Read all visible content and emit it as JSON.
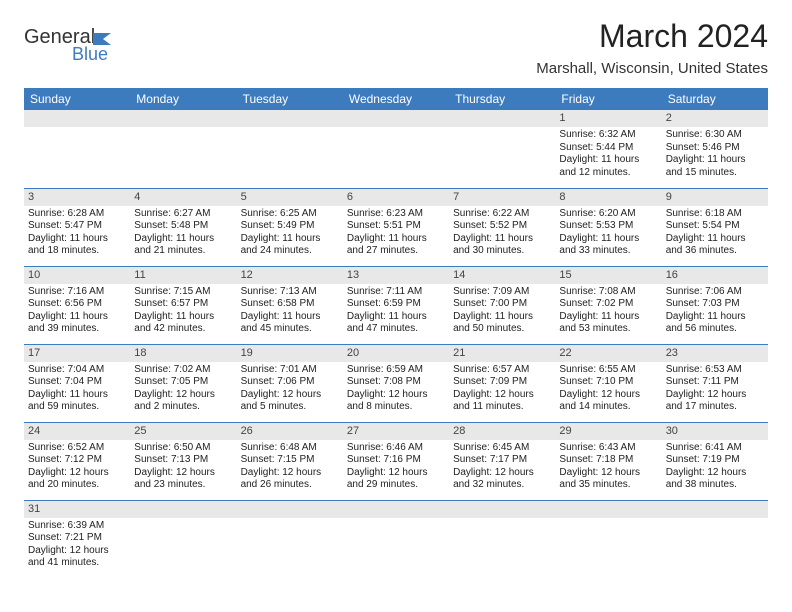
{
  "brand": {
    "part1": "General",
    "part2": "Blue"
  },
  "title": "March 2024",
  "location": "Marshall, Wisconsin, United States",
  "colors": {
    "header_bg": "#3d7bbf",
    "header_text": "#ffffff",
    "daynum_bg": "#e8e8e8",
    "border": "#3d7bbf",
    "page_bg": "#ffffff",
    "text": "#222222"
  },
  "weekdays": [
    "Sunday",
    "Monday",
    "Tuesday",
    "Wednesday",
    "Thursday",
    "Friday",
    "Saturday"
  ],
  "weeks": [
    [
      null,
      null,
      null,
      null,
      null,
      {
        "n": "1",
        "sunrise": "Sunrise: 6:32 AM",
        "sunset": "Sunset: 5:44 PM",
        "daylight": "Daylight: 11 hours and 12 minutes."
      },
      {
        "n": "2",
        "sunrise": "Sunrise: 6:30 AM",
        "sunset": "Sunset: 5:46 PM",
        "daylight": "Daylight: 11 hours and 15 minutes."
      }
    ],
    [
      {
        "n": "3",
        "sunrise": "Sunrise: 6:28 AM",
        "sunset": "Sunset: 5:47 PM",
        "daylight": "Daylight: 11 hours and 18 minutes."
      },
      {
        "n": "4",
        "sunrise": "Sunrise: 6:27 AM",
        "sunset": "Sunset: 5:48 PM",
        "daylight": "Daylight: 11 hours and 21 minutes."
      },
      {
        "n": "5",
        "sunrise": "Sunrise: 6:25 AM",
        "sunset": "Sunset: 5:49 PM",
        "daylight": "Daylight: 11 hours and 24 minutes."
      },
      {
        "n": "6",
        "sunrise": "Sunrise: 6:23 AM",
        "sunset": "Sunset: 5:51 PM",
        "daylight": "Daylight: 11 hours and 27 minutes."
      },
      {
        "n": "7",
        "sunrise": "Sunrise: 6:22 AM",
        "sunset": "Sunset: 5:52 PM",
        "daylight": "Daylight: 11 hours and 30 minutes."
      },
      {
        "n": "8",
        "sunrise": "Sunrise: 6:20 AM",
        "sunset": "Sunset: 5:53 PM",
        "daylight": "Daylight: 11 hours and 33 minutes."
      },
      {
        "n": "9",
        "sunrise": "Sunrise: 6:18 AM",
        "sunset": "Sunset: 5:54 PM",
        "daylight": "Daylight: 11 hours and 36 minutes."
      }
    ],
    [
      {
        "n": "10",
        "sunrise": "Sunrise: 7:16 AM",
        "sunset": "Sunset: 6:56 PM",
        "daylight": "Daylight: 11 hours and 39 minutes."
      },
      {
        "n": "11",
        "sunrise": "Sunrise: 7:15 AM",
        "sunset": "Sunset: 6:57 PM",
        "daylight": "Daylight: 11 hours and 42 minutes."
      },
      {
        "n": "12",
        "sunrise": "Sunrise: 7:13 AM",
        "sunset": "Sunset: 6:58 PM",
        "daylight": "Daylight: 11 hours and 45 minutes."
      },
      {
        "n": "13",
        "sunrise": "Sunrise: 7:11 AM",
        "sunset": "Sunset: 6:59 PM",
        "daylight": "Daylight: 11 hours and 47 minutes."
      },
      {
        "n": "14",
        "sunrise": "Sunrise: 7:09 AM",
        "sunset": "Sunset: 7:00 PM",
        "daylight": "Daylight: 11 hours and 50 minutes."
      },
      {
        "n": "15",
        "sunrise": "Sunrise: 7:08 AM",
        "sunset": "Sunset: 7:02 PM",
        "daylight": "Daylight: 11 hours and 53 minutes."
      },
      {
        "n": "16",
        "sunrise": "Sunrise: 7:06 AM",
        "sunset": "Sunset: 7:03 PM",
        "daylight": "Daylight: 11 hours and 56 minutes."
      }
    ],
    [
      {
        "n": "17",
        "sunrise": "Sunrise: 7:04 AM",
        "sunset": "Sunset: 7:04 PM",
        "daylight": "Daylight: 11 hours and 59 minutes."
      },
      {
        "n": "18",
        "sunrise": "Sunrise: 7:02 AM",
        "sunset": "Sunset: 7:05 PM",
        "daylight": "Daylight: 12 hours and 2 minutes."
      },
      {
        "n": "19",
        "sunrise": "Sunrise: 7:01 AM",
        "sunset": "Sunset: 7:06 PM",
        "daylight": "Daylight: 12 hours and 5 minutes."
      },
      {
        "n": "20",
        "sunrise": "Sunrise: 6:59 AM",
        "sunset": "Sunset: 7:08 PM",
        "daylight": "Daylight: 12 hours and 8 minutes."
      },
      {
        "n": "21",
        "sunrise": "Sunrise: 6:57 AM",
        "sunset": "Sunset: 7:09 PM",
        "daylight": "Daylight: 12 hours and 11 minutes."
      },
      {
        "n": "22",
        "sunrise": "Sunrise: 6:55 AM",
        "sunset": "Sunset: 7:10 PM",
        "daylight": "Daylight: 12 hours and 14 minutes."
      },
      {
        "n": "23",
        "sunrise": "Sunrise: 6:53 AM",
        "sunset": "Sunset: 7:11 PM",
        "daylight": "Daylight: 12 hours and 17 minutes."
      }
    ],
    [
      {
        "n": "24",
        "sunrise": "Sunrise: 6:52 AM",
        "sunset": "Sunset: 7:12 PM",
        "daylight": "Daylight: 12 hours and 20 minutes."
      },
      {
        "n": "25",
        "sunrise": "Sunrise: 6:50 AM",
        "sunset": "Sunset: 7:13 PM",
        "daylight": "Daylight: 12 hours and 23 minutes."
      },
      {
        "n": "26",
        "sunrise": "Sunrise: 6:48 AM",
        "sunset": "Sunset: 7:15 PM",
        "daylight": "Daylight: 12 hours and 26 minutes."
      },
      {
        "n": "27",
        "sunrise": "Sunrise: 6:46 AM",
        "sunset": "Sunset: 7:16 PM",
        "daylight": "Daylight: 12 hours and 29 minutes."
      },
      {
        "n": "28",
        "sunrise": "Sunrise: 6:45 AM",
        "sunset": "Sunset: 7:17 PM",
        "daylight": "Daylight: 12 hours and 32 minutes."
      },
      {
        "n": "29",
        "sunrise": "Sunrise: 6:43 AM",
        "sunset": "Sunset: 7:18 PM",
        "daylight": "Daylight: 12 hours and 35 minutes."
      },
      {
        "n": "30",
        "sunrise": "Sunrise: 6:41 AM",
        "sunset": "Sunset: 7:19 PM",
        "daylight": "Daylight: 12 hours and 38 minutes."
      }
    ],
    [
      {
        "n": "31",
        "sunrise": "Sunrise: 6:39 AM",
        "sunset": "Sunset: 7:21 PM",
        "daylight": "Daylight: 12 hours and 41 minutes."
      },
      null,
      null,
      null,
      null,
      null,
      null
    ]
  ]
}
